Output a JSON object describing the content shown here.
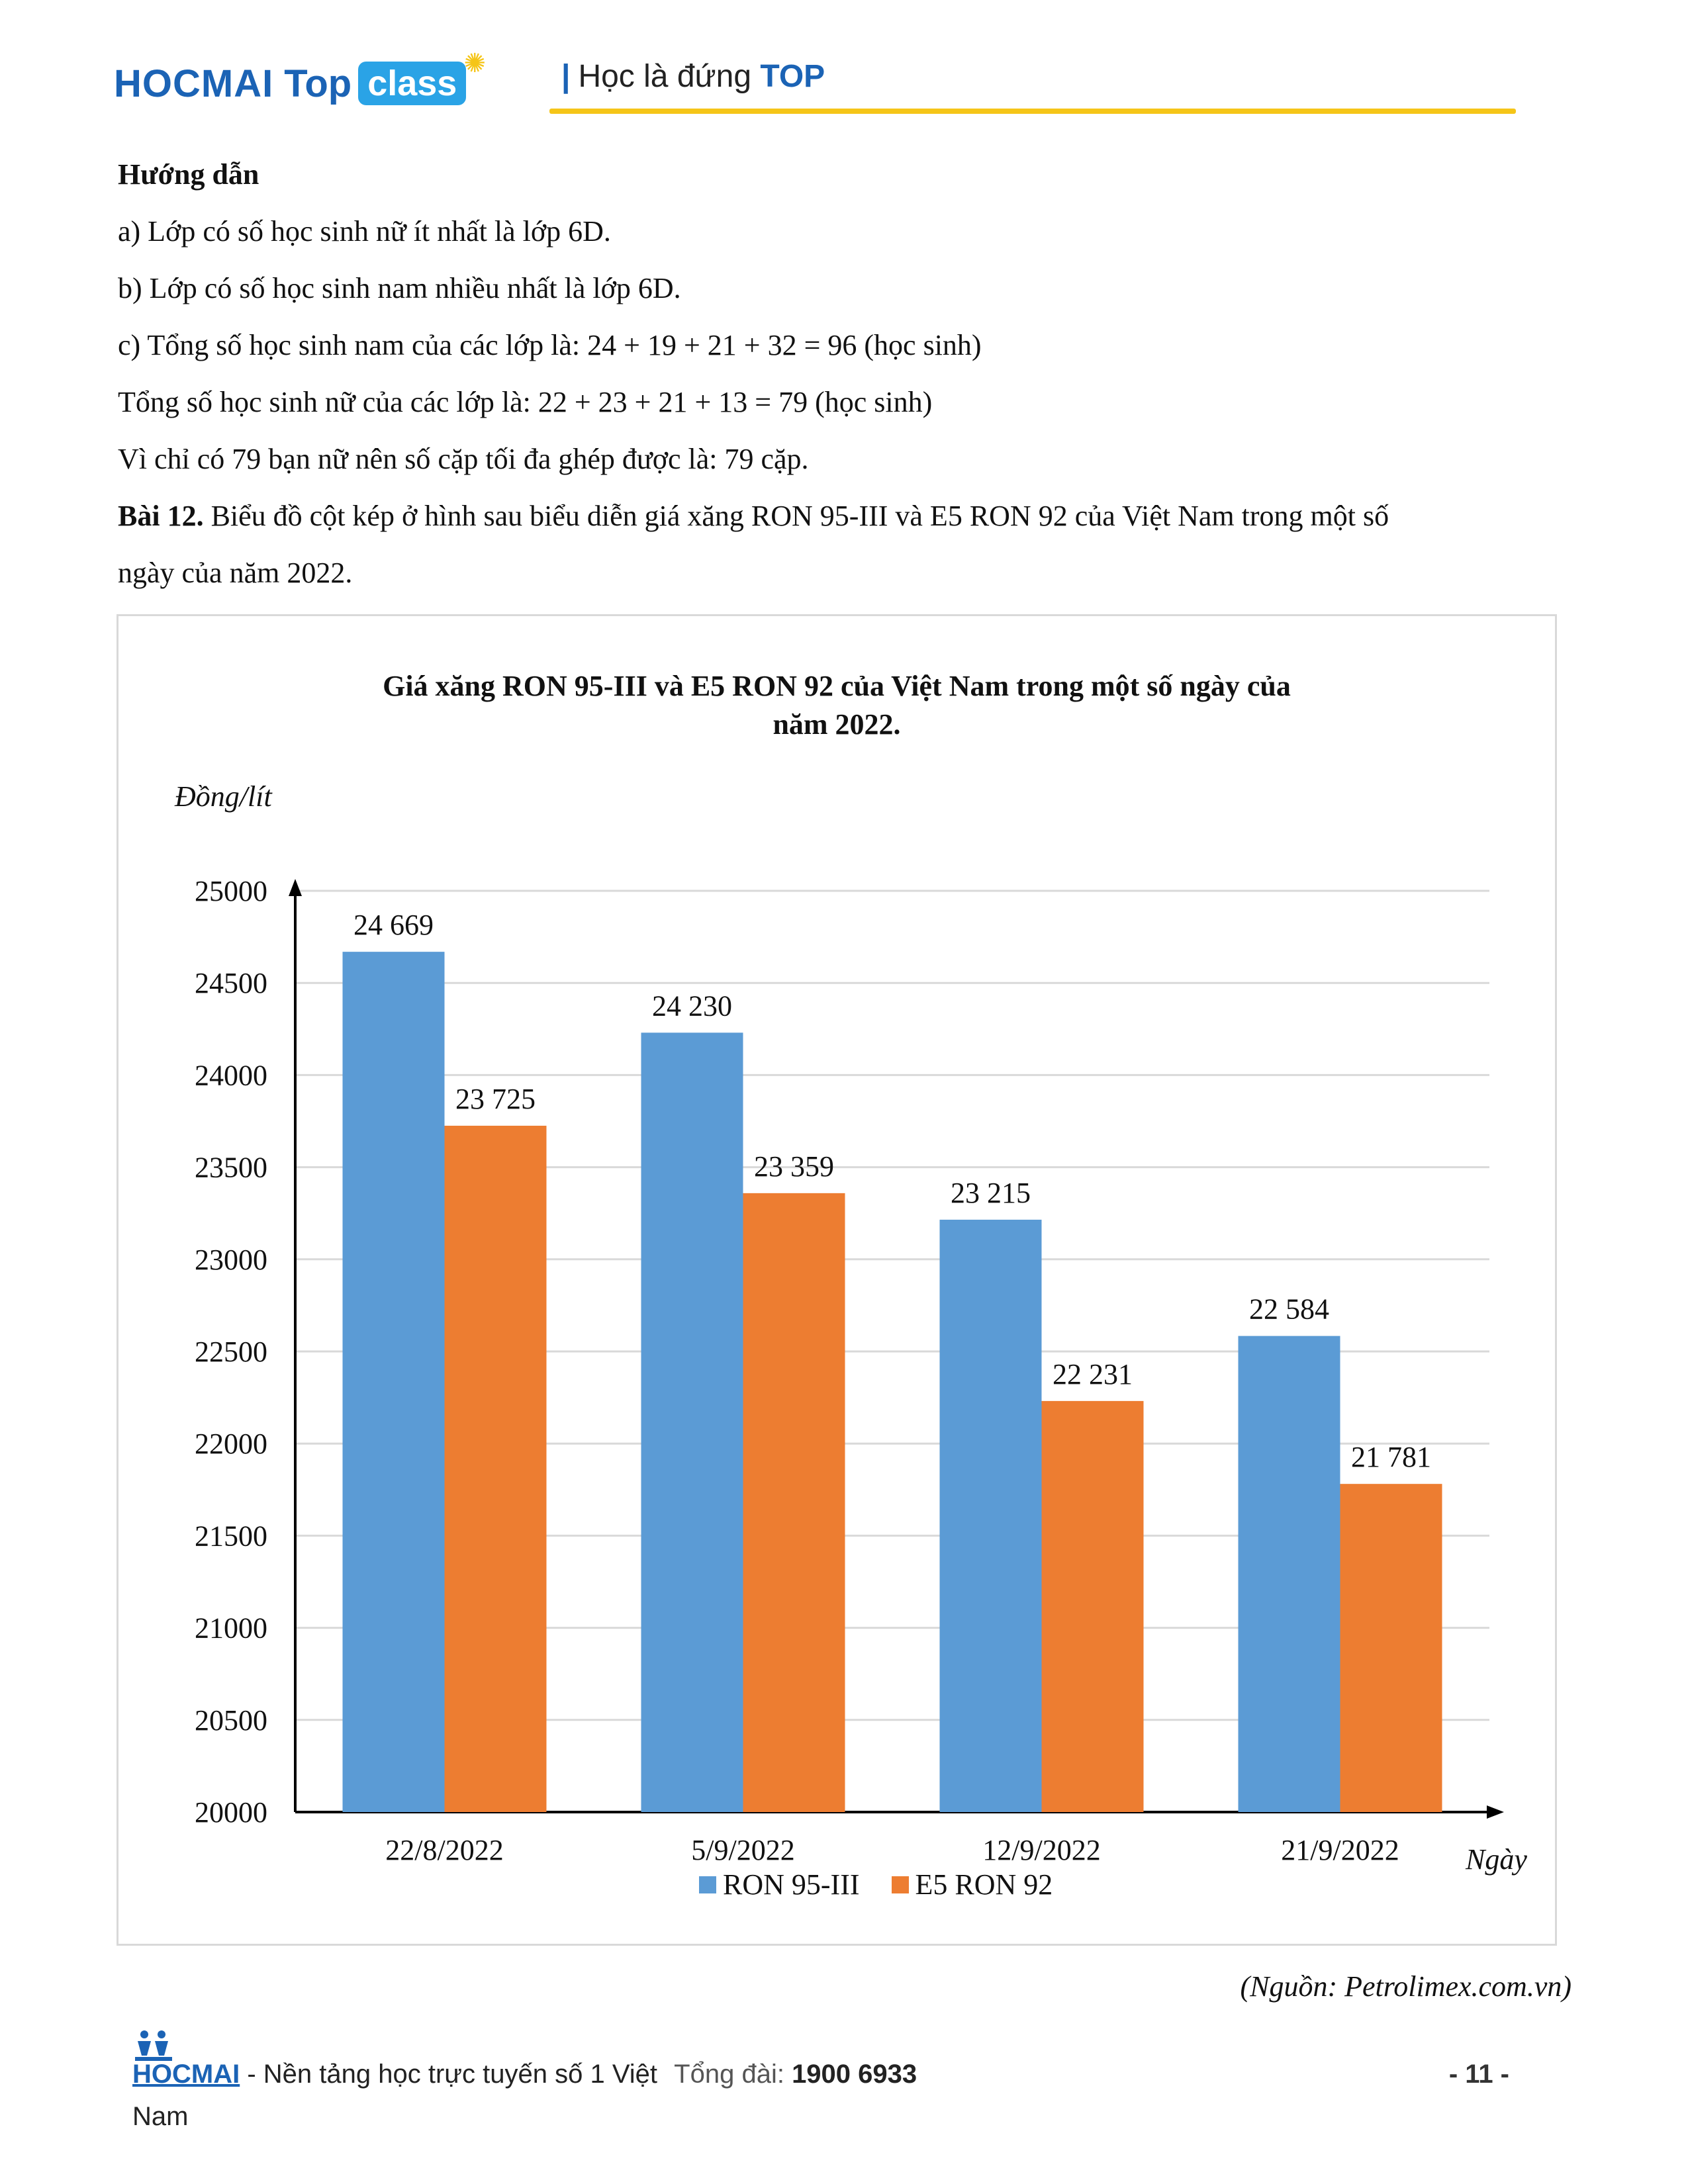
{
  "header": {
    "logo": {
      "hocmai": "HOCMAI",
      "top": "Top",
      "class": "class"
    },
    "tagline_bar": "|",
    "tagline_text": "Học là đứng ",
    "tagline_top": "TOP"
  },
  "guide": {
    "heading": "Hướng dẫn",
    "a": "a) Lớp có số học sinh nữ ít nhất là lớp 6D.",
    "b": "b) Lớp có số học sinh nam nhiều nhất là lớp 6D.",
    "c": "c) Tổng số học sinh nam của các lớp là: 24 + 19 + 21 + 32 = 96 (học sinh)",
    "d": "Tổng số học sinh nữ của các lớp là: 22 + 23 + 21 + 13 = 79 (học sinh)",
    "e": "Vì chỉ có 79 bạn nữ nên số cặp tối đa ghép được là: 79 cặp."
  },
  "exercise": {
    "label": "Bài 12.",
    "text1": " Biểu đồ cột kép ở hình sau biểu diễn giá xăng RON 95-III và E5 RON 92 của Việt Nam trong một số",
    "text2": "ngày của năm 2022."
  },
  "chart_data": {
    "type": "bar",
    "title_line1": "Giá xăng RON 95-III và E5 RON 92 của Việt Nam trong một số ngày của",
    "title_line2": "năm 2022.",
    "ylabel": "Đồng/lít",
    "xlabel": "Ngày",
    "ylim": [
      20000,
      25000
    ],
    "yticks": [
      "20000",
      "20500",
      "21000",
      "21500",
      "22000",
      "22500",
      "23000",
      "23500",
      "24000",
      "24500",
      "25000"
    ],
    "grid": true,
    "legend_position": "bottom",
    "categories": [
      "22/8/2022",
      "5/9/2022",
      "12/9/2022",
      "21/9/2022"
    ],
    "series": [
      {
        "name": "RON 95-III",
        "color": "#5b9bd5",
        "values": [
          24669,
          24230,
          23215,
          22584
        ],
        "labels": [
          "24 669",
          "24 230",
          "23 215",
          "22 584"
        ]
      },
      {
        "name": "E5 RON 92",
        "color": "#ed7d31",
        "values": [
          23725,
          23359,
          22231,
          21781
        ],
        "labels": [
          "23 725",
          "23 359",
          "22 231",
          "21 781"
        ]
      }
    ]
  },
  "source": "(Nguồn: Petrolimex.com.vn)",
  "footer": {
    "brand": "HOCMAI",
    "text": " - Nền tảng học trực tuyến số 1 Việt",
    "hotline_label": "Tổng đài: ",
    "hotline": "1900 6933",
    "line2": "Nam",
    "page": "- 11 -"
  }
}
